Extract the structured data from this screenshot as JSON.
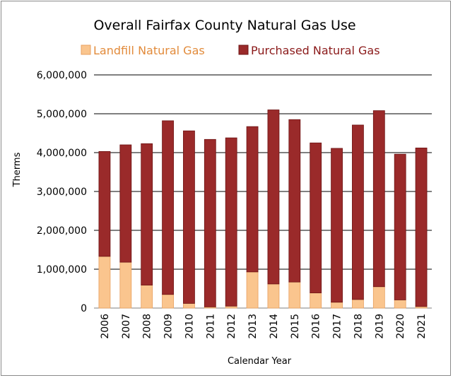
{
  "chart_data": {
    "type": "bar",
    "stacked": true,
    "title": "Overall Fairfax County Natural Gas Use",
    "xlabel": "Calendar Year",
    "ylabel": "Therms",
    "ylim": [
      0,
      6000000
    ],
    "yticks": [
      "0",
      "1,000,000",
      "2,000,000",
      "3,000,000",
      "4,000,000",
      "5,000,000",
      "6,000,000"
    ],
    "ytick_values": [
      0,
      1000000,
      2000000,
      3000000,
      4000000,
      5000000,
      6000000
    ],
    "grid": true,
    "legend_position": "top",
    "categories": [
      "2006",
      "2007",
      "2008",
      "2009",
      "2010",
      "2011",
      "2012",
      "2013",
      "2014",
      "2015",
      "2016",
      "2017",
      "2018",
      "2019",
      "2020",
      "2021"
    ],
    "series": [
      {
        "name": "Landfill Natural Gas",
        "color": "#fac58e",
        "edge": "#e8a060",
        "text_color": "#e28b3b",
        "values": [
          1330000,
          1180000,
          590000,
          350000,
          120000,
          30000,
          50000,
          930000,
          620000,
          670000,
          390000,
          150000,
          220000,
          550000,
          210000,
          40000
        ]
      },
      {
        "name": "Purchased Natural Gas",
        "color": "#9a2a2a",
        "edge": "#6e1414",
        "text_color": "#8b1a1a",
        "values": [
          2700000,
          3020000,
          3640000,
          4470000,
          4440000,
          4310000,
          4330000,
          3740000,
          4480000,
          4180000,
          3860000,
          3960000,
          4490000,
          4530000,
          3750000,
          4080000
        ]
      }
    ]
  }
}
